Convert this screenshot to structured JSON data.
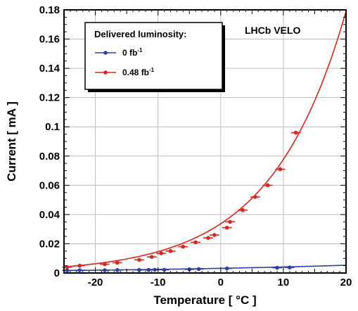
{
  "chart_data": {
    "type": "scatter",
    "title": "",
    "annotation": "LHCb VELO",
    "xlabel": "Temperature [ °C ]",
    "ylabel": "Current [ mA ]",
    "xlim": [
      -25,
      20
    ],
    "ylim": [
      0,
      0.18
    ],
    "x_ticks": [
      -20,
      -10,
      0,
      10,
      20
    ],
    "x_tick_labels": [
      "-20",
      "-10",
      "0",
      "10",
      "20"
    ],
    "y_ticks": [
      0,
      0.02,
      0.04,
      0.06,
      0.08,
      0.1,
      0.12,
      0.14,
      0.16,
      0.18
    ],
    "y_tick_labels": [
      "0",
      "0.02",
      "0.04",
      "0.06",
      "0.08",
      "0.1",
      "0.12",
      "0.14",
      "0.16",
      "0.18"
    ],
    "grid": true,
    "legend": {
      "title": "Delivered luminosity:",
      "placement": "top-left",
      "entries": [
        {
          "base": "0 fb",
          "sup": "-1"
        },
        {
          "base": "0.48 fb",
          "sup": "-1"
        }
      ]
    },
    "series": [
      {
        "name": "0 fb-1",
        "color": "#2b3fa8",
        "x": [
          -24.5,
          -22.5,
          -18.5,
          -16.5,
          -13,
          -11.5,
          -10.5,
          -9,
          -5,
          -3.5,
          1,
          9,
          11
        ],
        "y": [
          0.0018,
          0.0019,
          0.0019,
          0.002,
          0.0021,
          0.0021,
          0.0022,
          0.0022,
          0.0025,
          0.0027,
          0.0031,
          0.0036,
          0.0038
        ],
        "fit": {
          "a": 0.0032,
          "b": 0.0255
        }
      },
      {
        "name": "0.48 fb-1",
        "color": "#e02418",
        "x": [
          -24.5,
          -22.5,
          -18.5,
          -16.5,
          -13,
          -11,
          -9.5,
          -8,
          -6,
          -4,
          -2,
          -1,
          1,
          1.5,
          3.5,
          5.5,
          7.5,
          9.5,
          12
        ],
        "y": [
          0.004,
          0.005,
          0.006,
          0.007,
          0.009,
          0.011,
          0.0135,
          0.015,
          0.018,
          0.021,
          0.024,
          0.026,
          0.031,
          0.035,
          0.043,
          0.052,
          0.06,
          0.071,
          0.096
        ],
        "fit": {
          "a": 0.0337,
          "b": 0.0835
        }
      }
    ]
  }
}
